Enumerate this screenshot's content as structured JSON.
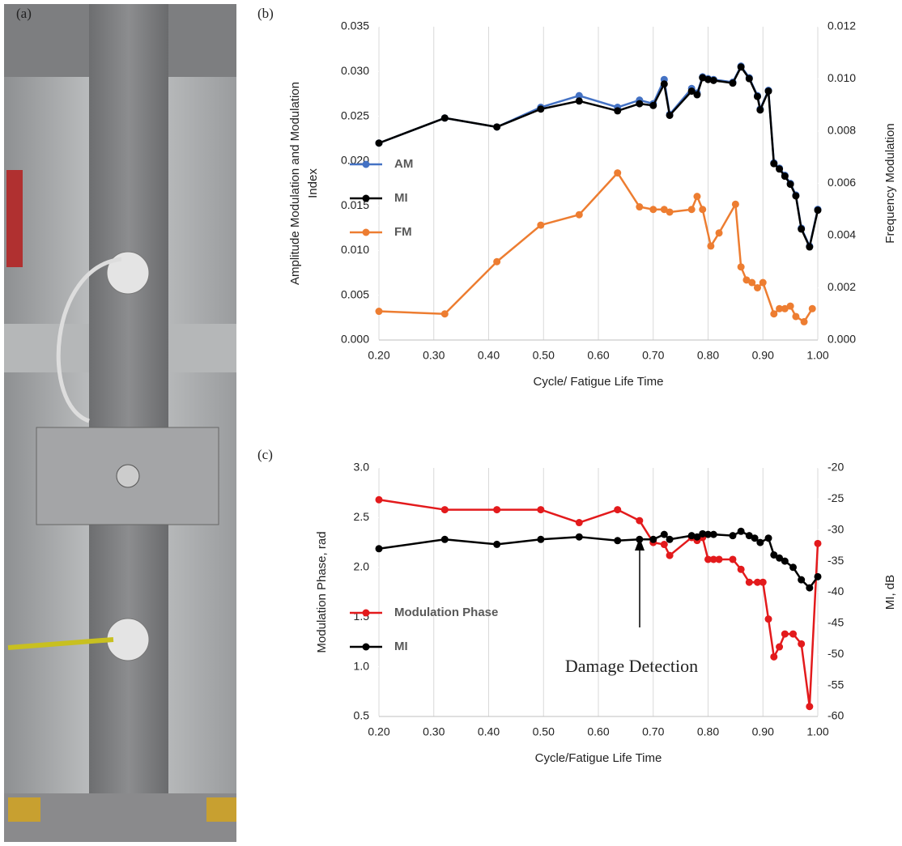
{
  "photo_label": "(a)",
  "annotation": "Damage Detection",
  "chart_data": [
    {
      "type": "line",
      "panel_label": "(b)",
      "x_label": "Cycle/ Fatigue Life Time",
      "y_label": [
        "Amplitude Modulation and Modulation",
        "Index"
      ],
      "y2_label": "Frequency Modulation",
      "xlim": [
        0.2,
        1.0
      ],
      "xticks": [
        {
          "value": 0.2,
          "label": "0.20"
        },
        {
          "value": 0.3,
          "label": "0.30"
        },
        {
          "value": 0.4,
          "label": "0.40"
        },
        {
          "value": 0.5,
          "label": "0.50"
        },
        {
          "value": 0.6,
          "label": "0.60"
        },
        {
          "value": 0.7,
          "label": "0.70"
        },
        {
          "value": 0.8,
          "label": "0.80"
        },
        {
          "value": 0.9,
          "label": "0.90"
        },
        {
          "value": 1.0,
          "label": "1.00"
        }
      ],
      "ylim": [
        0,
        0.035
      ],
      "yticks": [
        {
          "value": 0,
          "label": "0.000"
        },
        {
          "value": 0.005,
          "label": "0.005"
        },
        {
          "value": 0.01,
          "label": "0.010"
        },
        {
          "value": 0.015,
          "label": "0.015"
        },
        {
          "value": 0.02,
          "label": "0.020"
        },
        {
          "value": 0.025,
          "label": "0.025"
        },
        {
          "value": 0.03,
          "label": "0.030"
        },
        {
          "value": 0.035,
          "label": "0.035"
        }
      ],
      "y2lim": [
        0,
        0.012
      ],
      "y2ticks": [
        {
          "value": 0,
          "label": "0.000"
        },
        {
          "value": 0.002,
          "label": "0.002"
        },
        {
          "value": 0.004,
          "label": "0.004"
        },
        {
          "value": 0.006,
          "label": "0.006"
        },
        {
          "value": 0.008,
          "label": "0.008"
        },
        {
          "value": 0.01,
          "label": "0.010"
        },
        {
          "value": 0.012,
          "label": "0.012"
        }
      ],
      "grid": "x",
      "series": [
        {
          "name": "AM",
          "color": "#4472c4",
          "x": [
            0.2,
            0.32,
            0.415,
            0.495,
            0.565,
            0.635,
            0.675,
            0.7,
            0.72,
            0.73,
            0.77,
            0.78,
            0.79,
            0.8,
            0.81,
            0.845,
            0.86,
            0.875,
            0.89,
            0.895,
            0.91,
            0.92,
            0.93,
            0.94,
            0.95,
            0.96,
            0.97,
            0.985,
            1.0
          ],
          "values": [
            0.022,
            0.0248,
            0.0238,
            0.026,
            0.0273,
            0.026,
            0.0268,
            0.0264,
            0.0291,
            0.0252,
            0.0281,
            0.0276,
            0.0294,
            0.0292,
            0.0291,
            0.0288,
            0.0306,
            0.0293,
            0.0273,
            0.0258,
            0.0279,
            0.0198,
            0.0192,
            0.0184,
            0.0175,
            0.0162,
            0.0125,
            0.0105,
            0.0146
          ]
        },
        {
          "name": "MI",
          "color": "#000000",
          "x": [
            0.2,
            0.32,
            0.415,
            0.495,
            0.565,
            0.635,
            0.675,
            0.7,
            0.72,
            0.73,
            0.77,
            0.78,
            0.79,
            0.8,
            0.81,
            0.845,
            0.86,
            0.875,
            0.89,
            0.895,
            0.91,
            0.92,
            0.93,
            0.94,
            0.95,
            0.96,
            0.97,
            0.985,
            1.0
          ],
          "values": [
            0.022,
            0.0248,
            0.0238,
            0.0258,
            0.0267,
            0.0256,
            0.0264,
            0.0262,
            0.0286,
            0.0251,
            0.0278,
            0.0274,
            0.0293,
            0.0291,
            0.029,
            0.0287,
            0.0305,
            0.0292,
            0.0272,
            0.0257,
            0.0278,
            0.0197,
            0.0191,
            0.0183,
            0.0174,
            0.0161,
            0.0124,
            0.0104,
            0.0145
          ]
        },
        {
          "name": "FM",
          "color": "#ed7d31",
          "axis": "y2",
          "x": [
            0.2,
            0.32,
            0.415,
            0.495,
            0.565,
            0.635,
            0.675,
            0.7,
            0.72,
            0.73,
            0.77,
            0.78,
            0.79,
            0.805,
            0.82,
            0.85,
            0.86,
            0.87,
            0.88,
            0.89,
            0.9,
            0.92,
            0.93,
            0.94,
            0.95,
            0.96,
            0.975,
            0.99
          ],
          "values": [
            0.0011,
            0.001,
            0.003,
            0.0044,
            0.0048,
            0.0064,
            0.0051,
            0.005,
            0.005,
            0.0049,
            0.005,
            0.0055,
            0.005,
            0.0036,
            0.0041,
            0.0052,
            0.0028,
            0.0023,
            0.0022,
            0.002,
            0.0022,
            0.001,
            0.0012,
            0.0012,
            0.0013,
            0.0009,
            0.0007,
            0.0012
          ]
        }
      ]
    },
    {
      "type": "line",
      "panel_label": "(c)",
      "x_label": "Cycle/Fatigue Life Time",
      "y_label": [
        "Modulation Phase, rad"
      ],
      "y2_label": "MI, dB",
      "xlim": [
        0.2,
        1.0
      ],
      "xticks": [
        {
          "value": 0.2,
          "label": "0.20"
        },
        {
          "value": 0.3,
          "label": "0.30"
        },
        {
          "value": 0.4,
          "label": "0.40"
        },
        {
          "value": 0.5,
          "label": "0.50"
        },
        {
          "value": 0.6,
          "label": "0.60"
        },
        {
          "value": 0.7,
          "label": "0.70"
        },
        {
          "value": 0.8,
          "label": "0.80"
        },
        {
          "value": 0.9,
          "label": "0.90"
        },
        {
          "value": 1.0,
          "label": "1.00"
        }
      ],
      "ylim": [
        0.5,
        3.0
      ],
      "yticks": [
        0.5,
        {
          "value": 1,
          "label": "1.0"
        },
        1.5,
        {
          "value": 2,
          "label": "2.0"
        },
        2.5,
        {
          "value": 3,
          "label": "3.0"
        }
      ],
      "y2lim": [
        -60,
        -20
      ],
      "y2ticks": [
        -60,
        -55,
        -50,
        -45,
        -40,
        -35,
        -30,
        -25,
        -20
      ],
      "grid": "x",
      "series": [
        {
          "name": "Modulation Phase",
          "color": "#e31a1c",
          "x": [
            0.2,
            0.32,
            0.415,
            0.495,
            0.565,
            0.635,
            0.675,
            0.7,
            0.72,
            0.73,
            0.77,
            0.78,
            0.79,
            0.8,
            0.81,
            0.82,
            0.845,
            0.86,
            0.875,
            0.89,
            0.9,
            0.91,
            0.92,
            0.93,
            0.94,
            0.955,
            0.97,
            0.985,
            1.0
          ],
          "values": [
            2.68,
            2.58,
            2.58,
            2.58,
            2.45,
            2.58,
            2.47,
            2.25,
            2.23,
            2.12,
            2.3,
            2.27,
            2.3,
            2.08,
            2.08,
            2.08,
            2.08,
            1.98,
            1.85,
            1.85,
            1.85,
            1.48,
            1.1,
            1.2,
            1.33,
            1.33,
            1.23,
            0.6,
            2.24
          ]
        },
        {
          "name": "MI",
          "color": "#000000",
          "axis": "y2",
          "x": [
            0.2,
            0.32,
            0.415,
            0.495,
            0.565,
            0.635,
            0.675,
            0.7,
            0.72,
            0.73,
            0.77,
            0.78,
            0.79,
            0.8,
            0.81,
            0.845,
            0.86,
            0.875,
            0.885,
            0.895,
            0.91,
            0.92,
            0.93,
            0.94,
            0.955,
            0.97,
            0.985,
            1.0
          ],
          "values": [
            -33,
            -31.5,
            -32.3,
            -31.5,
            -31.1,
            -31.7,
            -31.5,
            -31.5,
            -30.7,
            -31.5,
            -30.9,
            -31.1,
            -30.6,
            -30.7,
            -30.7,
            -30.9,
            -30.2,
            -30.9,
            -31.3,
            -32,
            -31.3,
            -34,
            -34.5,
            -35,
            -36,
            -38,
            -39.3,
            -37.5
          ]
        }
      ]
    }
  ]
}
